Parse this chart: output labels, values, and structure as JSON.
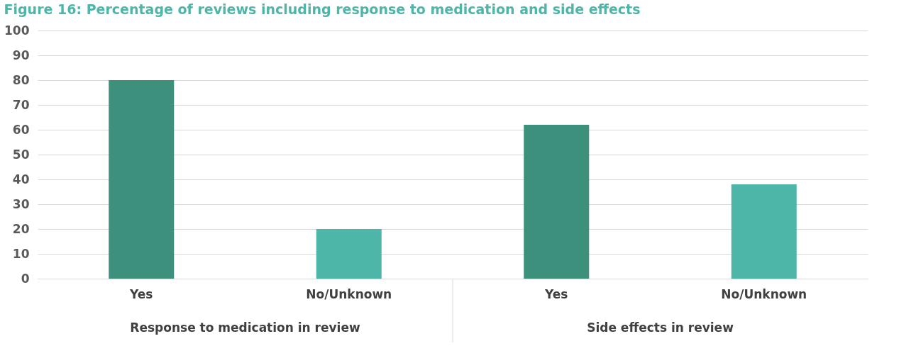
{
  "chart_data": {
    "type": "bar",
    "title": "Figure 16: Percentage of reviews including response to medication and side effects",
    "categories": [
      "Yes",
      "No/Unknown",
      "Yes",
      "No/Unknown"
    ],
    "values": [
      80,
      20,
      62,
      38
    ],
    "colors": [
      "#3d907b",
      "#4db6a8",
      "#3d907b",
      "#4db6a8"
    ],
    "ylim": [
      0,
      100
    ],
    "yticks": [
      0,
      10,
      20,
      30,
      40,
      50,
      60,
      70,
      80,
      90,
      100
    ],
    "grid": "y",
    "annotations": [
      "Response to medication in review",
      "Side effects in review"
    ]
  }
}
